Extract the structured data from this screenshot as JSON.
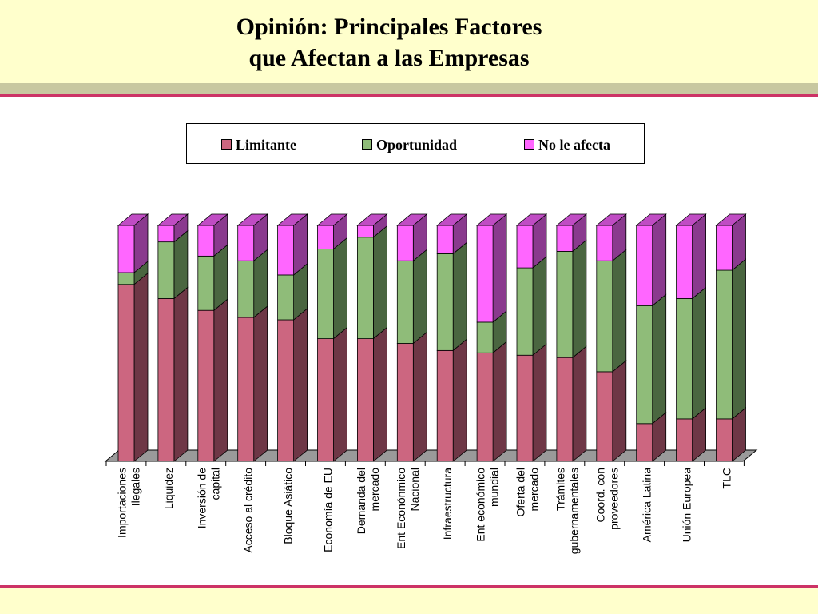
{
  "title_line1": "Opinión: Principales Factores",
  "title_line2": "que Afectan a las  Empresas",
  "colors": {
    "Limitante": "#cc6680",
    "Oportunidad": "#8fbc79",
    "No le afecta": "#ff66ff",
    "header_band": "#ffffcc",
    "accent_line": "#cc3366"
  },
  "chart_data": {
    "type": "bar",
    "stacked": true,
    "three_d": true,
    "title": "",
    "xlabel": "",
    "ylabel": "",
    "ylim": [
      0,
      100
    ],
    "legend_position": "top",
    "grid": false,
    "categories": [
      [
        "Importaciones",
        "Ilegales"
      ],
      [
        "Liquidez"
      ],
      [
        "Inversión de",
        "capital"
      ],
      [
        "Acceso al crédito"
      ],
      [
        "Bloque Asiático"
      ],
      [
        "Economía de EU"
      ],
      [
        "Demanda del",
        "mercado"
      ],
      [
        "Ent Econónmico",
        "Nacional"
      ],
      [
        "Infraestructura"
      ],
      [
        "Ent económico",
        "mundial"
      ],
      [
        "Oferta del",
        "mercado"
      ],
      [
        "Trámites",
        "gubernamentales"
      ],
      [
        "Coord. con",
        "proveedores"
      ],
      [
        "América Latina"
      ],
      [
        "Unión Europea"
      ],
      [
        "TLC"
      ]
    ],
    "series": [
      {
        "name": "Limitante",
        "values": [
          75,
          69,
          64,
          61,
          60,
          52,
          52,
          50,
          47,
          46,
          45,
          44,
          38,
          16,
          18,
          18
        ]
      },
      {
        "name": "Oportunidad",
        "values": [
          5,
          24,
          23,
          24,
          19,
          38,
          43,
          35,
          41,
          13,
          37,
          45,
          47,
          50,
          51,
          63
        ]
      },
      {
        "name": "No le afecta",
        "values": [
          20,
          7,
          13,
          15,
          21,
          10,
          5,
          15,
          12,
          41,
          18,
          11,
          15,
          34,
          31,
          19
        ]
      }
    ]
  }
}
